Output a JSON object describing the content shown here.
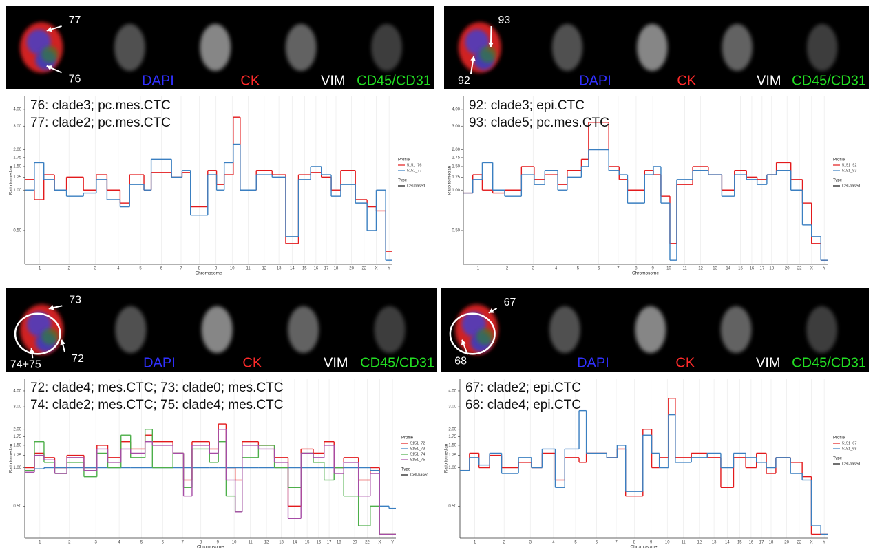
{
  "panels": [
    {
      "channels": [
        "DAPI",
        "CK",
        "VIM",
        "CD45/CD31"
      ],
      "cell_labels": [
        "77",
        "76"
      ]
    },
    {
      "channels": [
        "DAPI",
        "CK",
        "VIM",
        "CD45/CD31"
      ],
      "cell_labels": [
        "93",
        "92"
      ]
    },
    {
      "channels": [
        "DAPI",
        "CK",
        "VIM",
        "CD45/CD31"
      ],
      "cell_labels": [
        "73",
        "74+75",
        "72"
      ]
    },
    {
      "channels": [
        "DAPI",
        "CK",
        "VIM",
        "CD45/CD31"
      ],
      "cell_labels": [
        "67",
        "68"
      ]
    }
  ],
  "chart_data": [
    {
      "type": "line",
      "step": true,
      "log_y": true,
      "grid": true,
      "annotations": [
        "76: clade3; pc.mes.CTC",
        "77: clade2; pc.mes.CTC"
      ],
      "xlabel": "Chromosome",
      "ylabel": "Ratio to median",
      "xlim": [
        0,
        3086
      ],
      "ylim": [
        0.28,
        5.0
      ],
      "xticks": [
        {
          "value": 125,
          "label": "1"
        },
        {
          "value": 371,
          "label": "2"
        },
        {
          "value": 591,
          "label": "3"
        },
        {
          "value": 785,
          "label": "4"
        },
        {
          "value": 971,
          "label": "5"
        },
        {
          "value": 1147,
          "label": "6"
        },
        {
          "value": 1312,
          "label": "7"
        },
        {
          "value": 1464,
          "label": "8"
        },
        {
          "value": 1605,
          "label": "9"
        },
        {
          "value": 1741,
          "label": "10"
        },
        {
          "value": 1876,
          "label": "11"
        },
        {
          "value": 2010,
          "label": "12"
        },
        {
          "value": 2133,
          "label": "13"
        },
        {
          "value": 2244,
          "label": "14"
        },
        {
          "value": 2348,
          "label": "15"
        },
        {
          "value": 2444,
          "label": "16"
        },
        {
          "value": 2531,
          "label": "17"
        },
        {
          "value": 2612,
          "label": "18"
        },
        {
          "value": 2743,
          "label": "20"
        },
        {
          "value": 2848,
          "label": "22"
        },
        {
          "value": 2951,
          "label": "X"
        },
        {
          "value": 3058,
          "label": "Y"
        }
      ],
      "yticks": [
        {
          "value": 0.5,
          "label": "0.50"
        },
        {
          "value": 1,
          "label": "1.00"
        },
        {
          "value": 1.25,
          "label": "1.25"
        },
        {
          "value": 1.5,
          "label": "1.50"
        },
        {
          "value": 1.75,
          "label": "1.75"
        },
        {
          "value": 2,
          "label": "2.00"
        },
        {
          "value": 3,
          "label": "3.00"
        },
        {
          "value": 4,
          "label": "4.00"
        }
      ],
      "x": [
        0,
        80,
        160,
        249,
        350,
        492,
        600,
        690,
        800,
        880,
        1000,
        1061,
        1232,
        1320,
        1391,
        1536,
        1610,
        1674,
        1750,
        1808,
        1943,
        2076,
        2190,
        2297,
        2399,
        2489,
        2572,
        2652,
        2775,
        2873,
        2950,
        3029
      ],
      "legend_title": "Profile",
      "type_legend": {
        "title": "Type",
        "entries": [
          "Cell-based"
        ]
      },
      "series": [
        {
          "name": "5151_76",
          "color": "#e31a1c",
          "values": [
            1.2,
            0.85,
            1.3,
            1.0,
            1.25,
            1.0,
            1.3,
            1.0,
            0.8,
            1.3,
            1.0,
            1.35,
            1.25,
            1.35,
            0.75,
            1.4,
            1.1,
            1.3,
            3.5,
            1.0,
            1.4,
            1.3,
            0.4,
            1.3,
            1.35,
            1.25,
            1.0,
            1.4,
            0.85,
            0.75,
            0.7,
            0.35
          ]
        },
        {
          "name": "5151_77",
          "color": "#3a7fc1",
          "values": [
            1.0,
            1.6,
            1.2,
            1.0,
            0.9,
            0.95,
            1.2,
            0.85,
            0.75,
            1.1,
            1.0,
            1.7,
            1.25,
            1.4,
            0.65,
            1.3,
            1.0,
            1.6,
            2.2,
            1.0,
            1.3,
            1.25,
            0.45,
            1.2,
            1.5,
            1.3,
            0.9,
            1.1,
            0.8,
            0.5,
            1.0,
            0.3
          ]
        }
      ]
    },
    {
      "type": "line",
      "step": true,
      "log_y": true,
      "grid": true,
      "annotations": [
        "92: clade3; epi.CTC",
        "93: clade5; pc.mes.CTC"
      ],
      "xlabel": "Chromosome",
      "ylabel": "Ratio to median",
      "xlim": [
        0,
        3086
      ],
      "ylim": [
        0.28,
        5.0
      ],
      "xticks": [
        {
          "value": 125,
          "label": "1"
        },
        {
          "value": 371,
          "label": "2"
        },
        {
          "value": 591,
          "label": "3"
        },
        {
          "value": 785,
          "label": "4"
        },
        {
          "value": 971,
          "label": "5"
        },
        {
          "value": 1147,
          "label": "6"
        },
        {
          "value": 1312,
          "label": "7"
        },
        {
          "value": 1464,
          "label": "8"
        },
        {
          "value": 1605,
          "label": "9"
        },
        {
          "value": 1741,
          "label": "10"
        },
        {
          "value": 1876,
          "label": "11"
        },
        {
          "value": 2010,
          "label": "12"
        },
        {
          "value": 2133,
          "label": "13"
        },
        {
          "value": 2244,
          "label": "14"
        },
        {
          "value": 2348,
          "label": "15"
        },
        {
          "value": 2444,
          "label": "16"
        },
        {
          "value": 2531,
          "label": "17"
        },
        {
          "value": 2612,
          "label": "18"
        },
        {
          "value": 2743,
          "label": "20"
        },
        {
          "value": 2848,
          "label": "22"
        },
        {
          "value": 2951,
          "label": "X"
        },
        {
          "value": 3058,
          "label": "Y"
        }
      ],
      "yticks": [
        {
          "value": 0.5,
          "label": "0.50"
        },
        {
          "value": 1,
          "label": "1.00"
        },
        {
          "value": 1.25,
          "label": "1.25"
        },
        {
          "value": 1.5,
          "label": "1.50"
        },
        {
          "value": 1.75,
          "label": "1.75"
        },
        {
          "value": 2,
          "label": "2.00"
        },
        {
          "value": 3,
          "label": "3.00"
        },
        {
          "value": 4,
          "label": "4.00"
        }
      ],
      "x": [
        0,
        80,
        160,
        249,
        350,
        492,
        600,
        690,
        800,
        880,
        1000,
        1061,
        1232,
        1320,
        1391,
        1536,
        1610,
        1674,
        1750,
        1808,
        1943,
        2076,
        2190,
        2297,
        2399,
        2489,
        2572,
        2652,
        2775,
        2873,
        2950,
        3029
      ],
      "legend_title": "Profile",
      "type_legend": {
        "title": "Type",
        "entries": [
          "Cell-based"
        ]
      },
      "series": [
        {
          "name": "5151_92",
          "color": "#e31a1c",
          "values": [
            0.95,
            1.3,
            1.0,
            0.95,
            1.0,
            1.5,
            1.2,
            1.3,
            1.1,
            1.4,
            1.7,
            3.2,
            1.5,
            1.2,
            1.0,
            1.4,
            1.3,
            0.9,
            0.4,
            1.1,
            1.5,
            1.3,
            1.0,
            1.4,
            1.25,
            1.2,
            1.3,
            1.6,
            1.2,
            0.8,
            0.4,
            0.3
          ]
        },
        {
          "name": "5151_93",
          "color": "#3a7fc1",
          "values": [
            0.95,
            1.2,
            1.6,
            1.0,
            0.9,
            1.3,
            1.1,
            1.4,
            1.0,
            1.25,
            1.5,
            2.0,
            1.4,
            1.3,
            0.8,
            1.3,
            1.5,
            0.8,
            0.3,
            1.2,
            1.4,
            1.3,
            0.9,
            1.3,
            1.2,
            1.1,
            1.3,
            1.4,
            1.0,
            0.55,
            0.45,
            0.3
          ]
        }
      ]
    },
    {
      "type": "line",
      "step": true,
      "log_y": true,
      "grid": true,
      "annotations": [
        "72: clade4; mes.CTC; 73: clade0; mes.CTC",
        "74: clade2; mes.CTC; 75: clade4; mes.CTC"
      ],
      "xlabel": "Chromosome",
      "ylabel": "Ratio to median",
      "xlim": [
        0,
        3086
      ],
      "ylim": [
        0.28,
        5.0
      ],
      "xticks": [
        {
          "value": 125,
          "label": "1"
        },
        {
          "value": 371,
          "label": "2"
        },
        {
          "value": 591,
          "label": "3"
        },
        {
          "value": 785,
          "label": "4"
        },
        {
          "value": 971,
          "label": "5"
        },
        {
          "value": 1147,
          "label": "6"
        },
        {
          "value": 1312,
          "label": "7"
        },
        {
          "value": 1464,
          "label": "8"
        },
        {
          "value": 1605,
          "label": "9"
        },
        {
          "value": 1741,
          "label": "10"
        },
        {
          "value": 1876,
          "label": "11"
        },
        {
          "value": 2010,
          "label": "12"
        },
        {
          "value": 2133,
          "label": "13"
        },
        {
          "value": 2244,
          "label": "14"
        },
        {
          "value": 2348,
          "label": "15"
        },
        {
          "value": 2444,
          "label": "16"
        },
        {
          "value": 2531,
          "label": "17"
        },
        {
          "value": 2612,
          "label": "18"
        },
        {
          "value": 2743,
          "label": "20"
        },
        {
          "value": 2848,
          "label": "22"
        },
        {
          "value": 2951,
          "label": "X"
        },
        {
          "value": 3058,
          "label": "Y"
        }
      ],
      "yticks": [
        {
          "value": 0.5,
          "label": "0.50"
        },
        {
          "value": 1,
          "label": "1.00"
        },
        {
          "value": 1.25,
          "label": "1.25"
        },
        {
          "value": 1.5,
          "label": "1.50"
        },
        {
          "value": 1.75,
          "label": "1.75"
        },
        {
          "value": 2,
          "label": "2.00"
        },
        {
          "value": 3,
          "label": "3.00"
        },
        {
          "value": 4,
          "label": "4.00"
        }
      ],
      "x": [
        0,
        80,
        160,
        249,
        350,
        492,
        600,
        690,
        800,
        880,
        1000,
        1061,
        1232,
        1320,
        1391,
        1536,
        1610,
        1674,
        1750,
        1808,
        1943,
        2076,
        2190,
        2297,
        2399,
        2489,
        2572,
        2652,
        2775,
        2873,
        2950,
        3029
      ],
      "legend_title": "Profile",
      "type_legend": {
        "title": "Type",
        "entries": [
          "Cell-based"
        ]
      },
      "series": [
        {
          "name": "5151_72",
          "color": "#e31a1c",
          "values": [
            1.0,
            1.3,
            1.2,
            1.0,
            1.25,
            1.0,
            1.5,
            1.2,
            1.6,
            1.4,
            1.8,
            1.6,
            1.3,
            0.8,
            1.6,
            1.4,
            2.2,
            1.0,
            0.8,
            1.6,
            1.5,
            1.2,
            0.5,
            1.4,
            1.3,
            1.6,
            1.0,
            1.2,
            0.8,
            1.0,
            0.3,
            0.3
          ]
        },
        {
          "name": "5151_73",
          "color": "#3a7fc1",
          "values": [
            0.95,
            0.98,
            1.0,
            1.0,
            1.0,
            1.0,
            1.0,
            1.0,
            1.0,
            1.0,
            1.0,
            1.0,
            1.0,
            1.0,
            1.0,
            1.0,
            1.0,
            1.0,
            1.0,
            1.0,
            1.0,
            1.0,
            1.0,
            1.0,
            1.0,
            1.0,
            1.0,
            1.0,
            1.0,
            0.95,
            0.5,
            0.48
          ]
        },
        {
          "name": "5151_74",
          "color": "#4daf4a",
          "values": [
            0.95,
            1.6,
            1.1,
            0.9,
            1.1,
            0.85,
            1.3,
            1.0,
            1.8,
            1.2,
            2.0,
            1.0,
            1.3,
            0.7,
            1.4,
            1.1,
            1.6,
            0.6,
            0.45,
            1.2,
            1.5,
            1.0,
            0.7,
            1.3,
            1.1,
            0.8,
            1.0,
            0.6,
            0.35,
            0.5,
            0.3,
            0.3
          ]
        },
        {
          "name": "5151_75",
          "color": "#a64ca6",
          "values": [
            0.92,
            1.25,
            1.15,
            0.9,
            1.2,
            0.95,
            1.4,
            1.1,
            1.4,
            1.3,
            1.6,
            1.5,
            1.3,
            0.6,
            1.5,
            1.3,
            2.0,
            0.8,
            0.45,
            1.5,
            1.4,
            1.1,
            0.4,
            1.3,
            1.2,
            1.5,
            0.9,
            1.1,
            0.6,
            0.9,
            0.3,
            0.3
          ]
        }
      ]
    },
    {
      "type": "line",
      "step": true,
      "log_y": true,
      "grid": true,
      "annotations": [
        "67: clade2; epi.CTC",
        "68: clade4; epi.CTC"
      ],
      "xlabel": "Chromosome",
      "ylabel": "Ratio to median",
      "xlim": [
        0,
        3086
      ],
      "ylim": [
        0.28,
        5.0
      ],
      "xticks": [
        {
          "value": 125,
          "label": "1"
        },
        {
          "value": 371,
          "label": "2"
        },
        {
          "value": 591,
          "label": "3"
        },
        {
          "value": 785,
          "label": "4"
        },
        {
          "value": 971,
          "label": "5"
        },
        {
          "value": 1147,
          "label": "6"
        },
        {
          "value": 1312,
          "label": "7"
        },
        {
          "value": 1464,
          "label": "8"
        },
        {
          "value": 1605,
          "label": "9"
        },
        {
          "value": 1741,
          "label": "10"
        },
        {
          "value": 1876,
          "label": "11"
        },
        {
          "value": 2010,
          "label": "12"
        },
        {
          "value": 2133,
          "label": "13"
        },
        {
          "value": 2244,
          "label": "14"
        },
        {
          "value": 2348,
          "label": "15"
        },
        {
          "value": 2444,
          "label": "16"
        },
        {
          "value": 2531,
          "label": "17"
        },
        {
          "value": 2612,
          "label": "18"
        },
        {
          "value": 2743,
          "label": "20"
        },
        {
          "value": 2848,
          "label": "22"
        },
        {
          "value": 2951,
          "label": "X"
        },
        {
          "value": 3058,
          "label": "Y"
        }
      ],
      "yticks": [
        {
          "value": 0.5,
          "label": "0.50"
        },
        {
          "value": 1,
          "label": "1.00"
        },
        {
          "value": 1.25,
          "label": "1.25"
        },
        {
          "value": 1.5,
          "label": "1.50"
        },
        {
          "value": 1.75,
          "label": "1.75"
        },
        {
          "value": 2,
          "label": "2.00"
        },
        {
          "value": 3,
          "label": "3.00"
        },
        {
          "value": 4,
          "label": "4.00"
        }
      ],
      "x": [
        0,
        80,
        160,
        249,
        350,
        492,
        600,
        690,
        800,
        880,
        1000,
        1061,
        1232,
        1320,
        1391,
        1536,
        1610,
        1674,
        1750,
        1808,
        1943,
        2076,
        2190,
        2297,
        2399,
        2489,
        2572,
        2652,
        2775,
        2873,
        2950,
        3029
      ],
      "legend_title": "Profile",
      "type_legend": {
        "title": "Type",
        "entries": [
          "Cell-based"
        ]
      },
      "series": [
        {
          "name": "5151_67",
          "color": "#e31a1c",
          "values": [
            0.95,
            1.3,
            1.0,
            1.25,
            1.0,
            1.1,
            1.0,
            1.3,
            0.8,
            1.2,
            1.1,
            1.3,
            1.2,
            1.4,
            0.6,
            2.0,
            1.0,
            1.2,
            3.5,
            1.2,
            1.3,
            1.2,
            0.7,
            1.2,
            1.0,
            1.3,
            0.9,
            1.2,
            1.1,
            0.85,
            0.3,
            0.3
          ]
        },
        {
          "name": "5151_68",
          "color": "#3a7fc1",
          "values": [
            0.95,
            1.2,
            1.05,
            1.3,
            0.9,
            1.2,
            1.0,
            1.4,
            0.7,
            1.4,
            2.8,
            1.3,
            1.2,
            1.5,
            0.65,
            1.8,
            1.3,
            1.0,
            2.6,
            1.1,
            1.2,
            1.3,
            1.0,
            1.3,
            1.2,
            1.1,
            1.0,
            1.2,
            0.9,
            0.8,
            0.35,
            0.3
          ]
        }
      ]
    }
  ]
}
